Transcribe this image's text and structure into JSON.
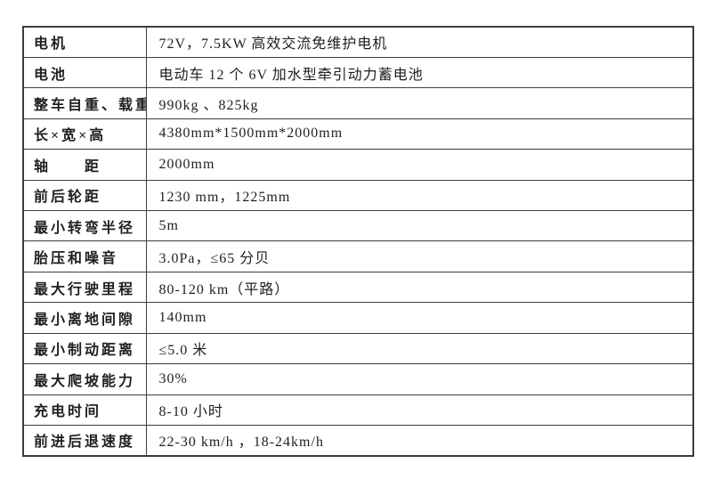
{
  "colors": {
    "background": "#ffffff",
    "border": "#3d3d3d",
    "text": "#1f1f1f"
  },
  "table": {
    "rows": [
      {
        "label": "电机",
        "value": "72V，7.5KW 高效交流免维护电机"
      },
      {
        "label": "电池",
        "value": "电动车 12 个 6V 加水型牵引动力蓄电池"
      },
      {
        "label": "整车自重、载重",
        "value": "990kg 、825kg"
      },
      {
        "label": "长×宽×高",
        "value": "4380mm*1500mm*2000mm"
      },
      {
        "label": "轴　　距",
        "value": "2000mm"
      },
      {
        "label": "前后轮距",
        "value": "1230 mm，1225mm"
      },
      {
        "label": "最小转弯半径",
        "value": "5m"
      },
      {
        "label": "胎压和噪音",
        "value": "3.0Pa，≤65 分贝"
      },
      {
        "label": "最大行驶里程",
        "value": "80-120 km（平路）"
      },
      {
        "label": "最小离地间隙",
        "value": "140mm"
      },
      {
        "label": "最小制动距离",
        "value": "≤5.0 米"
      },
      {
        "label": "最大爬坡能力",
        "value": "30%"
      },
      {
        "label": "充电时间",
        "value": "8-10 小时"
      },
      {
        "label": "前进后退速度",
        "value": "22-30 km/h ，18-24km/h"
      }
    ]
  }
}
